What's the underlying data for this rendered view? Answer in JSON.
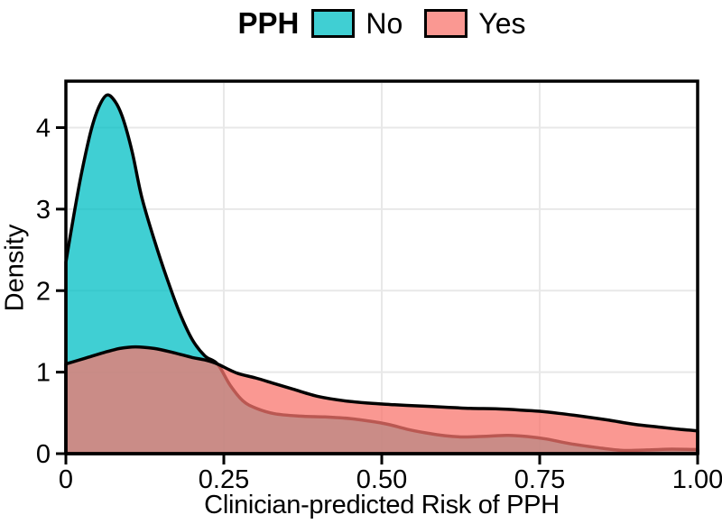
{
  "legend": {
    "title": "PPH",
    "items": [
      {
        "label": "No",
        "fill_rgb": "0,191,196",
        "alpha": 0.75,
        "border": "#000000"
      },
      {
        "label": "Yes",
        "fill_rgb": "248,118,109",
        "alpha": 0.75,
        "border": "#000000"
      }
    ]
  },
  "chart_data": {
    "type": "area",
    "subtype": "density",
    "title": "",
    "xlabel": "Clinician-predicted Risk of PPH",
    "ylabel": "Density",
    "xlim": [
      0,
      1
    ],
    "ylim": [
      0,
      4.57
    ],
    "grid": {
      "show": true,
      "color": "#E8E8E8",
      "x_values": [
        0.25,
        0.5,
        0.75
      ],
      "y_values": [
        1,
        2,
        3,
        4
      ]
    },
    "x_ticks": {
      "values": [
        0,
        0.25,
        0.5,
        0.75,
        1.0
      ],
      "labels": [
        "0",
        "0.25",
        "0.50",
        "0.75",
        "1.00"
      ]
    },
    "y_ticks": {
      "values": [
        0,
        1,
        2,
        3,
        4
      ],
      "labels": [
        "0",
        "1",
        "2",
        "3",
        "4"
      ]
    },
    "legend_position": "top",
    "panel_border_color": "#000000",
    "outline_width": 3.5,
    "series": [
      {
        "name": "No",
        "fill_rgb": "0,191,196",
        "alpha": 0.75,
        "outline": "#000000",
        "points": [
          [
            0,
            2.35
          ],
          [
            0.012,
            2.9
          ],
          [
            0.025,
            3.45
          ],
          [
            0.04,
            3.97
          ],
          [
            0.052,
            4.25
          ],
          [
            0.065,
            4.4
          ],
          [
            0.078,
            4.32
          ],
          [
            0.09,
            4.12
          ],
          [
            0.105,
            3.7
          ],
          [
            0.12,
            3.15
          ],
          [
            0.14,
            2.62
          ],
          [
            0.16,
            2.15
          ],
          [
            0.18,
            1.73
          ],
          [
            0.2,
            1.4
          ],
          [
            0.22,
            1.2
          ],
          [
            0.24,
            1.1
          ],
          [
            0.26,
            0.84
          ],
          [
            0.28,
            0.65
          ],
          [
            0.3,
            0.56
          ],
          [
            0.33,
            0.49
          ],
          [
            0.37,
            0.46
          ],
          [
            0.41,
            0.45
          ],
          [
            0.45,
            0.43
          ],
          [
            0.48,
            0.4
          ],
          [
            0.51,
            0.36
          ],
          [
            0.54,
            0.3
          ],
          [
            0.57,
            0.255
          ],
          [
            0.6,
            0.22
          ],
          [
            0.63,
            0.205
          ],
          [
            0.67,
            0.215
          ],
          [
            0.7,
            0.225
          ],
          [
            0.73,
            0.21
          ],
          [
            0.76,
            0.18
          ],
          [
            0.8,
            0.12
          ],
          [
            0.84,
            0.075
          ],
          [
            0.88,
            0.04
          ],
          [
            0.92,
            0.045
          ],
          [
            0.96,
            0.055
          ],
          [
            1,
            0.05
          ]
        ]
      },
      {
        "name": "Yes",
        "fill_rgb": "248,118,109",
        "alpha": 0.75,
        "outline": "#000000",
        "points": [
          [
            0,
            1.1
          ],
          [
            0.03,
            1.17
          ],
          [
            0.06,
            1.24
          ],
          [
            0.085,
            1.29
          ],
          [
            0.11,
            1.31
          ],
          [
            0.14,
            1.29
          ],
          [
            0.17,
            1.24
          ],
          [
            0.2,
            1.18
          ],
          [
            0.22,
            1.15
          ],
          [
            0.24,
            1.1
          ],
          [
            0.27,
            0.99
          ],
          [
            0.3,
            0.93
          ],
          [
            0.33,
            0.86
          ],
          [
            0.36,
            0.79
          ],
          [
            0.4,
            0.7
          ],
          [
            0.44,
            0.65
          ],
          [
            0.48,
            0.62
          ],
          [
            0.52,
            0.6
          ],
          [
            0.56,
            0.585
          ],
          [
            0.6,
            0.57
          ],
          [
            0.64,
            0.555
          ],
          [
            0.68,
            0.55
          ],
          [
            0.72,
            0.535
          ],
          [
            0.75,
            0.52
          ],
          [
            0.78,
            0.495
          ],
          [
            0.82,
            0.455
          ],
          [
            0.86,
            0.41
          ],
          [
            0.9,
            0.36
          ],
          [
            0.94,
            0.325
          ],
          [
            0.97,
            0.3
          ],
          [
            1,
            0.28
          ]
        ]
      }
    ]
  }
}
